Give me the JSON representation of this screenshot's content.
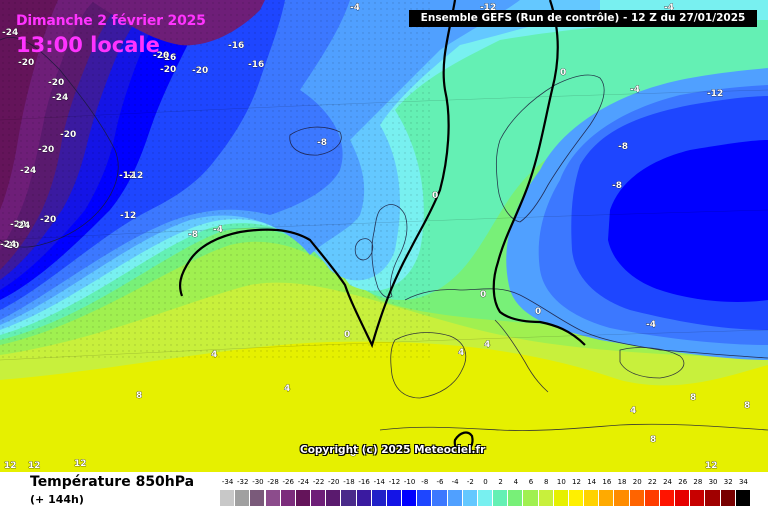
{
  "header": {
    "date": "Dimanche 2 février 2025",
    "time": "13:00 locale",
    "run_info": "Ensemble GEFS  (Run de contrôle)  -  12 Z du 27/01/2025"
  },
  "footer": {
    "title": "Température 850hPa",
    "subtitle": "(+ 144h)",
    "copyright": "Copyright (c) 2025 Meteociel.fr"
  },
  "legend": {
    "labels": [
      "-34",
      "-32",
      "-30",
      "-28",
      "-26",
      "-24",
      "-22",
      "-20",
      "-18",
      "-16",
      "-14",
      "-12",
      "-10",
      "-8",
      "-6",
      "-4",
      "-2",
      "0",
      "2",
      "4",
      "6",
      "8",
      "10",
      "12",
      "14",
      "16",
      "18",
      "20",
      "22",
      "24",
      "26",
      "28",
      "30",
      "32",
      "34"
    ],
    "colors": [
      "#c8c8c8",
      "#a0a0a0",
      "#7a5a7a",
      "#8c4c8c",
      "#7c2c7c",
      "#64145a",
      "#6e1e78",
      "#5a1a6e",
      "#4a2a8a",
      "#3a1aa0",
      "#2020c8",
      "#1414e6",
      "#0000ff",
      "#1e46ff",
      "#3c78ff",
      "#50a0ff",
      "#64c8ff",
      "#78f0f0",
      "#64f0b4",
      "#78f078",
      "#a0f050",
      "#c8f03c",
      "#e6f000",
      "#fff000",
      "#ffd200",
      "#ffaa00",
      "#ff8c00",
      "#ff6400",
      "#ff3c00",
      "#ff1400",
      "#e60000",
      "#c80000",
      "#a00000",
      "#780000",
      "#000000"
    ]
  },
  "map": {
    "isotherm_labels": [
      "-24",
      "-20",
      "-20",
      "-24",
      "-20",
      "-20",
      "-16",
      "-16",
      "-20",
      "-16",
      "-20",
      "-20",
      "-20",
      "-24",
      "-20",
      "-20",
      "-24",
      "-24",
      "-12",
      "-12",
      "-12",
      "-8",
      "-4",
      "-8",
      "0",
      "0",
      "0",
      "0",
      "0",
      "-4",
      "-4",
      "-8",
      "-8",
      "-12",
      "-4",
      "4",
      "4",
      "4",
      "4",
      "4",
      "8",
      "8",
      "8",
      "8",
      "12",
      "12",
      "12",
      "12",
      "8",
      "-12",
      "-4"
    ]
  }
}
